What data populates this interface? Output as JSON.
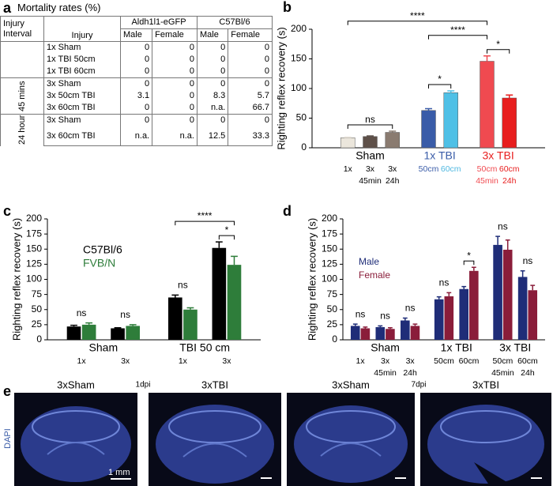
{
  "panels": [
    "a",
    "b",
    "c",
    "d",
    "e"
  ],
  "table": {
    "title": "Mortality rates (%)",
    "columns": [
      "Injury Interval",
      "Injury"
    ],
    "strains": [
      "Aldh1l1-eGFP",
      "C57Bl/6"
    ],
    "sexes": [
      "Male",
      "Female",
      "Male",
      "Female"
    ],
    "groups": [
      {
        "rows": [
          {
            "injury": "1x Sham",
            "values": [
              0,
              0,
              0,
              0
            ]
          },
          {
            "injury": "1x TBI 50cm",
            "values": [
              0,
              0,
              0,
              0
            ]
          },
          {
            "injury": "1x TBI 60cm",
            "values": [
              0,
              0,
              0,
              0
            ]
          }
        ]
      },
      {
        "interval": "45 mins",
        "rows": [
          {
            "injury": "3x Sham",
            "values": [
              0,
              0,
              0,
              0
            ]
          },
          {
            "injury": "3x 50cm TBI",
            "values": [
              3.1,
              0,
              8.3,
              5.7
            ]
          },
          {
            "injury": "3x 60cm TBI",
            "values": [
              0,
              0,
              "n.a.",
              66.7
            ]
          }
        ]
      },
      {
        "interval": "24 hour",
        "rows": [
          {
            "injury": "3x Sham",
            "values": [
              0,
              0,
              0,
              0
            ]
          },
          {
            "injury": "3x 60cm TBI",
            "values": [
              "n.a.",
              "n.a.",
              12.5,
              33.3
            ]
          }
        ]
      }
    ]
  },
  "chart_data": [
    {
      "type": "bar",
      "ylabel": "Righting reflex recovery (s)",
      "ylim": [
        0,
        200
      ],
      "yticks": [
        0,
        50,
        100,
        150,
        200
      ],
      "categories": [
        "1x",
        "3x",
        "3x",
        "50cm",
        "60cm",
        "50cm",
        "60cm"
      ],
      "category_notes": [
        null,
        "45min",
        "24h",
        null,
        null,
        "45min",
        "24h"
      ],
      "category_colors": [
        "#000000",
        "#000000",
        "#000000",
        "#3a5ca8",
        "#4fb8e0",
        "#f04a50",
        "#e82020"
      ],
      "groups": [
        {
          "label": "Sham",
          "members": [
            0,
            1,
            2
          ],
          "color": "#000000"
        },
        {
          "label": "1x TBI",
          "members": [
            3,
            4
          ],
          "color": "#3a5ca8"
        },
        {
          "label": "3x TBI",
          "members": [
            5,
            6
          ],
          "color": "#e82020"
        }
      ],
      "values": [
        17,
        19,
        26,
        63,
        93,
        146,
        84
      ],
      "errors": [
        1,
        1,
        2,
        3,
        3,
        9,
        5
      ],
      "colors": [
        "#ebe6dc",
        "#5e5049",
        "#8a7b70",
        "#3a5ca8",
        "#4fc0e6",
        "#f04a50",
        "#e81e1e"
      ],
      "annotations": [
        {
          "text": "ns",
          "from": 0,
          "to": 2
        },
        {
          "text": "*",
          "from": 3,
          "to": 4
        },
        {
          "text": "*",
          "from": 5,
          "to": 6
        },
        {
          "text": "****",
          "from": 3,
          "to": 5
        },
        {
          "text": "****",
          "from": 0,
          "to": 5
        }
      ]
    },
    {
      "type": "bar",
      "ylabel": "Righting reflex recovery (s)",
      "ylim": [
        0,
        200
      ],
      "yticks": [
        0,
        25,
        50,
        75,
        100,
        125,
        150,
        175,
        200
      ],
      "categories": [
        "1x",
        "3x",
        "1x",
        "3x"
      ],
      "groups": [
        {
          "label": "Sham",
          "members": [
            0,
            1
          ]
        },
        {
          "label": "TBI 50 cm",
          "members": [
            2,
            3
          ]
        }
      ],
      "legend": "upper left",
      "series": [
        {
          "name": "C57Bl/6",
          "color": "#000000",
          "values": [
            22,
            19,
            70,
            152
          ],
          "errors": [
            2,
            1,
            4,
            10
          ]
        },
        {
          "name": "FVB/N",
          "color": "#2e7d3a",
          "values": [
            25,
            23,
            50,
            124
          ],
          "errors": [
            3,
            2,
            3,
            14
          ]
        }
      ],
      "annotations": [
        {
          "text": "ns",
          "at": 0
        },
        {
          "text": "ns",
          "at": 1
        },
        {
          "text": "ns",
          "at": 2
        },
        {
          "text": "*",
          "from": [
            3,
            0
          ],
          "to": [
            3,
            1
          ]
        },
        {
          "text": "****",
          "from": [
            2,
            0
          ],
          "to": [
            3,
            1
          ]
        }
      ]
    },
    {
      "type": "bar",
      "ylabel": "Righting reflex recovery (s)",
      "ylim": [
        0,
        200
      ],
      "yticks": [
        0,
        25,
        50,
        75,
        100,
        125,
        150,
        175,
        200
      ],
      "categories": [
        "1x",
        "3x",
        "3x",
        "50cm",
        "60cm",
        "50cm",
        "60cm"
      ],
      "category_notes": [
        null,
        "45min",
        "24h",
        null,
        null,
        "45min",
        "24h"
      ],
      "groups": [
        {
          "label": "Sham",
          "members": [
            0,
            1,
            2
          ]
        },
        {
          "label": "1x TBI",
          "members": [
            3,
            4
          ]
        },
        {
          "label": "3x TBI",
          "members": [
            5,
            6
          ]
        }
      ],
      "legend": "upper left",
      "series": [
        {
          "name": "Male",
          "color": "#1f2d78",
          "values": [
            23,
            21,
            32,
            67,
            84,
            157,
            104
          ],
          "errors": [
            3,
            2,
            4,
            4,
            4,
            14,
            10
          ]
        },
        {
          "name": "Female",
          "color": "#8a1d3a",
          "values": [
            19,
            18,
            23,
            72,
            114,
            149,
            82
          ],
          "errors": [
            2,
            2,
            3,
            6,
            6,
            16,
            8
          ]
        }
      ],
      "annotations": [
        {
          "text": "ns",
          "at": 0
        },
        {
          "text": "ns",
          "at": 1
        },
        {
          "text": "ns",
          "at": 2
        },
        {
          "text": "ns",
          "at": 3
        },
        {
          "text": "*",
          "from": [
            4,
            0
          ],
          "to": [
            4,
            1
          ]
        },
        {
          "text": "ns",
          "at": 5
        },
        {
          "text": "ns",
          "at": 6
        }
      ]
    }
  ],
  "images": {
    "labels": [
      "3xSham",
      "3xTBI",
      "3xSham",
      "3xTBI"
    ],
    "timepoints": [
      "1dpi",
      "7dpi"
    ],
    "stain": "DAPI",
    "scale_bar": "1 mm"
  }
}
